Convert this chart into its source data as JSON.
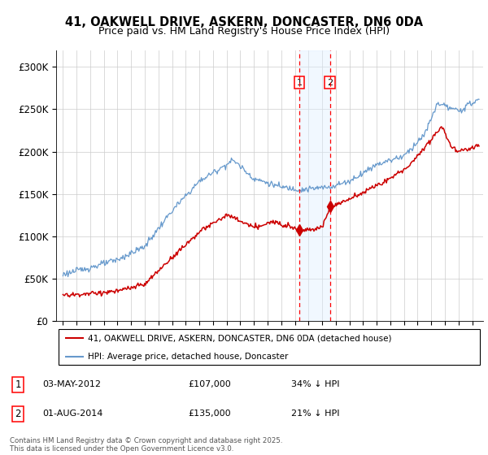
{
  "title_line1": "41, OAKWELL DRIVE, ASKERN, DONCASTER, DN6 0DA",
  "title_line2": "Price paid vs. HM Land Registry's House Price Index (HPI)",
  "legend_entry1": "41, OAKWELL DRIVE, ASKERN, DONCASTER, DN6 0DA (detached house)",
  "legend_entry2": "HPI: Average price, detached house, Doncaster",
  "transaction1_date": "03-MAY-2012",
  "transaction1_price": "£107,000",
  "transaction1_hpi": "34% ↓ HPI",
  "transaction2_date": "01-AUG-2014",
  "transaction2_price": "£135,000",
  "transaction2_hpi": "21% ↓ HPI",
  "footnote": "Contains HM Land Registry data © Crown copyright and database right 2025.\nThis data is licensed under the Open Government Licence v3.0.",
  "hpi_color": "#6699cc",
  "price_color": "#cc0000",
  "ylim": [
    0,
    320000
  ],
  "yticks": [
    0,
    50000,
    100000,
    150000,
    200000,
    250000,
    300000
  ],
  "ytick_labels": [
    "£0",
    "£50K",
    "£100K",
    "£150K",
    "£200K",
    "£250K",
    "£300K"
  ],
  "transaction1_year": 2012.33,
  "transaction1_value": 107000,
  "transaction2_year": 2014.58,
  "transaction2_value": 135000,
  "xmin": 1994.5,
  "xmax": 2025.8,
  "grid_color": "#cccccc",
  "shade_color": "#ddeeff",
  "shade_alpha": 0.4
}
